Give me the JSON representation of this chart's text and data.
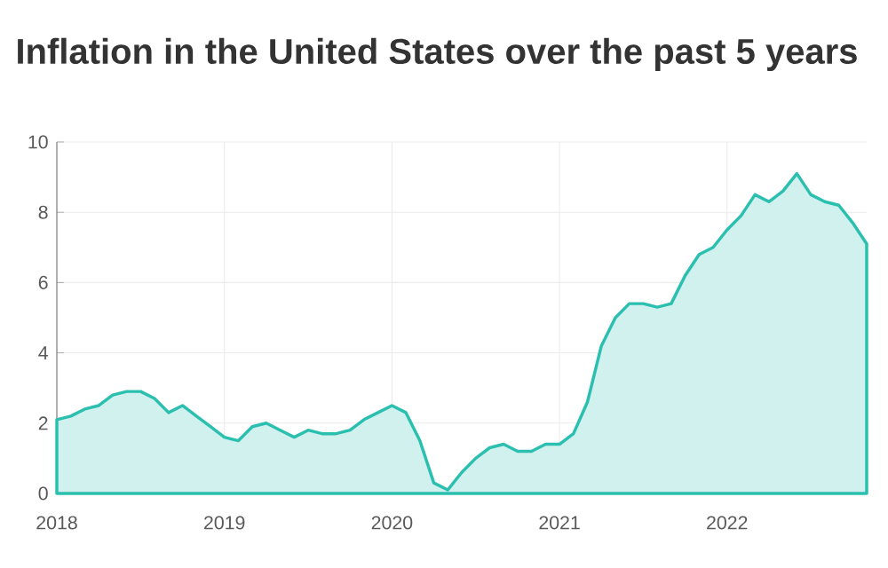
{
  "chart_data": {
    "type": "area",
    "title": "Inflation in the United States over the past 5 years",
    "x": [
      "2018-01",
      "2018-02",
      "2018-03",
      "2018-04",
      "2018-05",
      "2018-06",
      "2018-07",
      "2018-08",
      "2018-09",
      "2018-10",
      "2018-11",
      "2018-12",
      "2019-01",
      "2019-02",
      "2019-03",
      "2019-04",
      "2019-05",
      "2019-06",
      "2019-07",
      "2019-08",
      "2019-09",
      "2019-10",
      "2019-11",
      "2019-12",
      "2020-01",
      "2020-02",
      "2020-03",
      "2020-04",
      "2020-05",
      "2020-06",
      "2020-07",
      "2020-08",
      "2020-09",
      "2020-10",
      "2020-11",
      "2020-12",
      "2021-01",
      "2021-02",
      "2021-03",
      "2021-04",
      "2021-05",
      "2021-06",
      "2021-07",
      "2021-08",
      "2021-09",
      "2021-10",
      "2021-11",
      "2021-12",
      "2022-01",
      "2022-02",
      "2022-03",
      "2022-04",
      "2022-05",
      "2022-06",
      "2022-07",
      "2022-08",
      "2022-09",
      "2022-10",
      "2022-11"
    ],
    "values": [
      2.1,
      2.2,
      2.4,
      2.5,
      2.8,
      2.9,
      2.9,
      2.7,
      2.3,
      2.5,
      2.2,
      1.9,
      1.6,
      1.5,
      1.9,
      2.0,
      1.8,
      1.6,
      1.8,
      1.7,
      1.7,
      1.8,
      2.1,
      2.3,
      2.5,
      2.3,
      1.5,
      0.3,
      0.1,
      0.6,
      1.0,
      1.3,
      1.4,
      1.2,
      1.2,
      1.4,
      1.4,
      1.7,
      2.6,
      4.2,
      5.0,
      5.4,
      5.4,
      5.3,
      5.4,
      6.2,
      6.8,
      7.0,
      7.5,
      7.9,
      8.5,
      8.3,
      8.6,
      9.1,
      8.5,
      8.3,
      8.2,
      7.7,
      7.1
    ],
    "color": "#2bbfb0",
    "xlim": [
      "2018-01",
      "2022-11"
    ],
    "xticks": [
      "2018",
      "2019",
      "2020",
      "2021",
      "2022"
    ],
    "ylim": [
      0,
      10
    ],
    "yticks": [
      0,
      2,
      4,
      6,
      8,
      10
    ],
    "grid": true
  }
}
